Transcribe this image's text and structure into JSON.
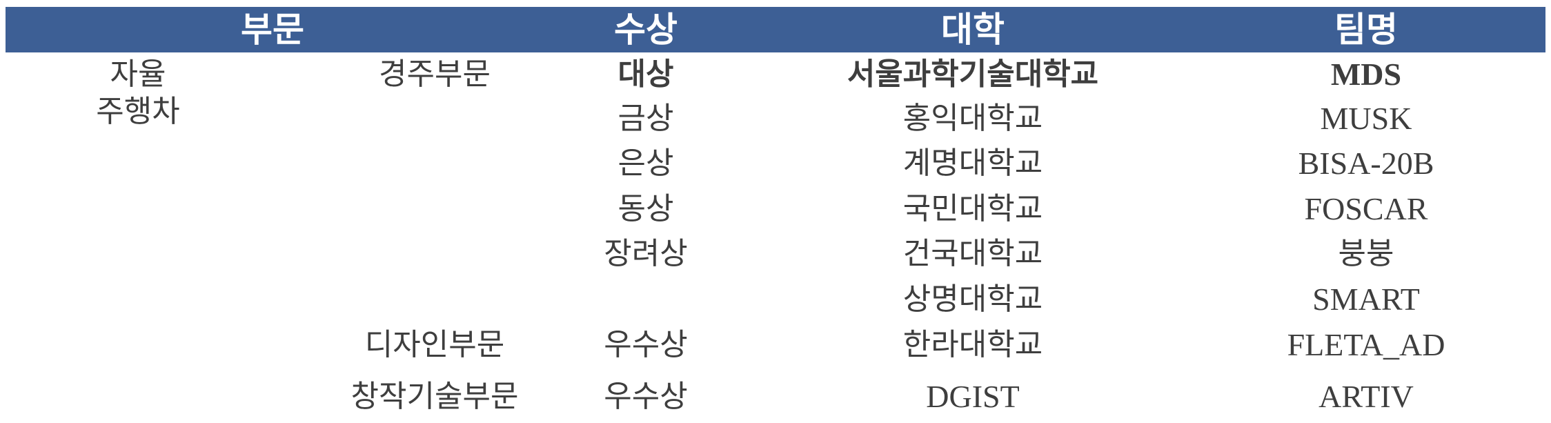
{
  "header": {
    "division": "부문",
    "award": "수상",
    "university": "대학",
    "team": "팀명"
  },
  "category": {
    "line1": "자율",
    "line2": "주행차"
  },
  "subdivisions": {
    "racing": "경주부문",
    "design": "디자인부문",
    "creative_tech": "창작기술부문"
  },
  "rows": [
    {
      "award": "대상",
      "university": "서울과학기술대학교",
      "team": "MDS"
    },
    {
      "award": "금상",
      "university": "홍익대학교",
      "team": "MUSK"
    },
    {
      "award": "은상",
      "university": "계명대학교",
      "team": "BISA-20B"
    },
    {
      "award": "동상",
      "university": "국민대학교",
      "team": "FOSCAR"
    },
    {
      "award": "장려상",
      "university": "건국대학교",
      "team": "붕붕"
    },
    {
      "award": "",
      "university": "상명대학교",
      "team": "SMART"
    },
    {
      "award": "우수상",
      "university": "한라대학교",
      "team": "FLETA_AD"
    },
    {
      "award": "우수상",
      "university": "DGIST",
      "team": "ARTIV"
    }
  ]
}
